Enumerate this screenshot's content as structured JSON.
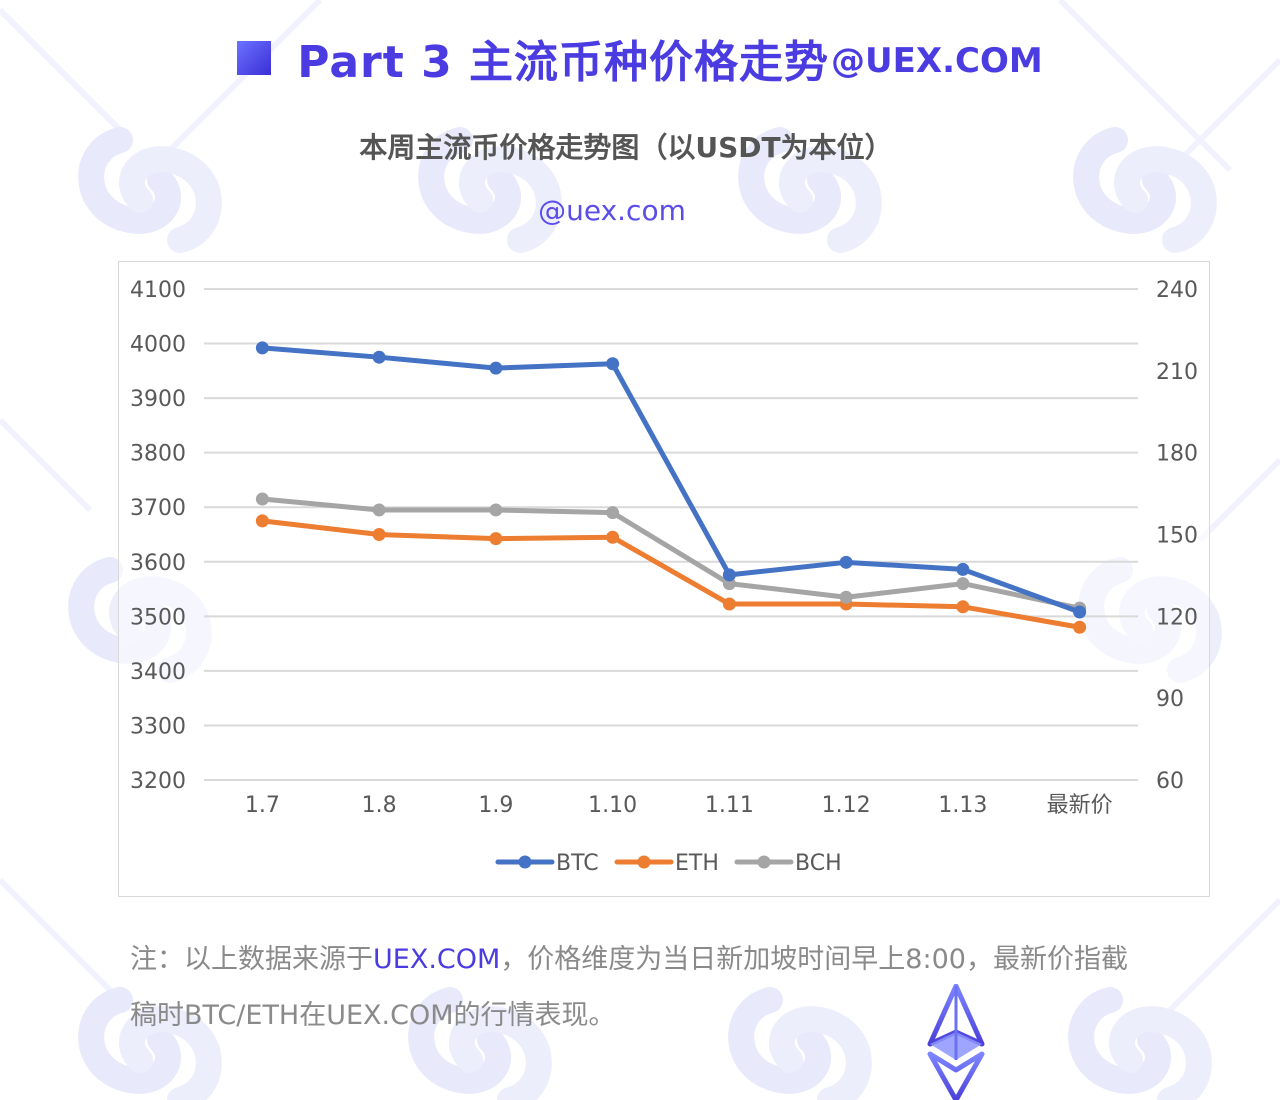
{
  "header": {
    "title": "Part 3 主流币种价格走势",
    "suffix": "@UEX.COM"
  },
  "chart_data": {
    "type": "line",
    "title": "本周主流币价格走势图（以USDT为本位）",
    "watermark": "@uex.com",
    "categories": [
      "1.7",
      "1.8",
      "1.9",
      "1.10",
      "1.11",
      "1.12",
      "1.13",
      "最新价"
    ],
    "y_left": {
      "min": 3200,
      "max": 4100,
      "ticks": [
        3200,
        3300,
        3400,
        3500,
        3600,
        3700,
        3800,
        3900,
        4000,
        4100
      ]
    },
    "y_right": {
      "min": 60,
      "max": 240,
      "ticks": [
        60,
        90,
        120,
        150,
        180,
        210,
        240
      ]
    },
    "grid": true,
    "legend_position": "bottom",
    "series": [
      {
        "name": "BTC",
        "axis": "left",
        "color": "#4472c4",
        "values": [
          3992,
          3975,
          3955,
          3963,
          3576,
          3599,
          3586,
          3508
        ]
      },
      {
        "name": "ETH",
        "axis": "right",
        "color": "#ed7d31",
        "values": [
          155,
          150,
          148.5,
          149,
          124.5,
          124.5,
          123.5,
          116
        ]
      },
      {
        "name": "BCH",
        "axis": "right",
        "color": "#a5a5a5",
        "values": [
          163,
          159,
          159,
          158,
          132,
          127,
          132,
          123
        ]
      }
    ]
  },
  "note": {
    "part1": "注：以上数据来源于",
    "highlight": "UEX.COM",
    "part2": "，价格维度为当日新加坡时间早上8:00，最新价指截稿时BTC/ETH在UEX.COM的行情表现。"
  }
}
